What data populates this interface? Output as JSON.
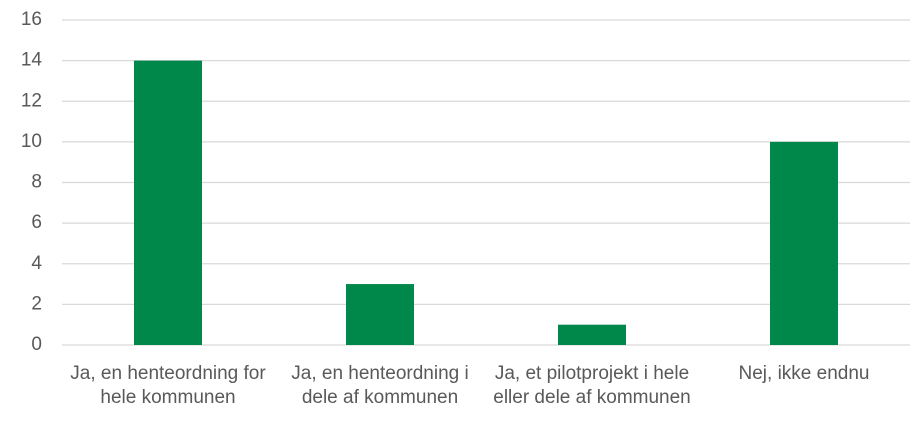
{
  "chart_data": {
    "type": "bar",
    "categories": [
      "Ja, en henteordning for hele kommunen",
      "Ja, en henteordning i dele af kommunen",
      "Ja, et pilotprojekt i hele eller dele af kommunen",
      "Nej, ikke endnu"
    ],
    "values": [
      14,
      3,
      1,
      10
    ],
    "color": "#00884a",
    "ylim": [
      0,
      16
    ],
    "yticks": [
      0,
      2,
      4,
      6,
      8,
      10,
      12,
      14,
      16
    ],
    "grid": true
  }
}
